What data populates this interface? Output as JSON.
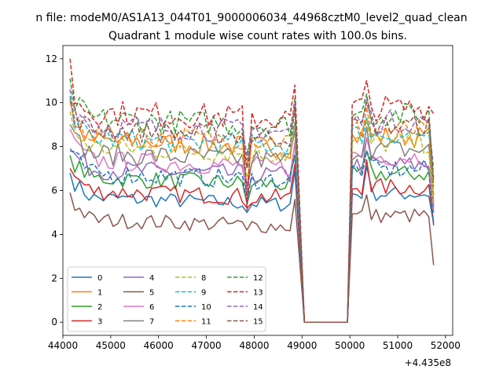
{
  "suptitle": "n file: modeM0/AS1A13_044T01_9000006034_44968cztM0_level2_quad_clean",
  "chart_data": {
    "type": "line",
    "title": "Quadrant 1 module wise count rates with 100.0s bins.",
    "xlabel": "",
    "ylabel": "",
    "x_offset_label": "+4.435e8",
    "xlim": [
      44000,
      52150
    ],
    "ylim": [
      -0.6,
      12.6
    ],
    "xticks": [
      44000,
      45000,
      46000,
      47000,
      48000,
      49000,
      50000,
      51000,
      52000
    ],
    "yticks": [
      0,
      2,
      4,
      6,
      8,
      10,
      12
    ],
    "grid": false,
    "legend": {
      "location": "lower-left",
      "columns": 4
    },
    "x_segments": [
      {
        "start": 44150,
        "end": 48850,
        "step": 100
      },
      {
        "start": 49050,
        "end": 49950,
        "step": 100
      },
      {
        "start": 50050,
        "end": 51750,
        "step": 100
      }
    ],
    "series": [
      {
        "name": "0",
        "color": "#1f77b4",
        "dash": "solid",
        "level": 5.7,
        "jitter": 0.35,
        "first": 6.8,
        "last": 4.5,
        "peak": 6.9,
        "dip": 5.0
      },
      {
        "name": "1",
        "color": "#ff7f0e",
        "dash": "solid",
        "level": 8.3,
        "jitter": 0.5,
        "first": 10.2,
        "last": 5.5,
        "peak": 9.1,
        "dip": 6.0
      },
      {
        "name": "2",
        "color": "#2ca02c",
        "dash": "solid",
        "level": 6.6,
        "jitter": 0.4,
        "first": 7.6,
        "last": 5.0,
        "peak": 7.6,
        "dip": 5.4
      },
      {
        "name": "3",
        "color": "#d62728",
        "dash": "solid",
        "level": 6.0,
        "jitter": 0.4,
        "first": 7.0,
        "last": 4.5,
        "peak": 7.2,
        "dip": 5.2
      },
      {
        "name": "4",
        "color": "#9467bd",
        "dash": "solid",
        "level": 7.0,
        "jitter": 0.45,
        "first": 7.9,
        "last": 5.0,
        "peak": 8.2,
        "dip": 5.8
      },
      {
        "name": "5",
        "color": "#8c564b",
        "dash": "solid",
        "level": 4.7,
        "jitter": 0.35,
        "first": 5.9,
        "last": 2.6,
        "peak": 5.6,
        "dip": 4.2
      },
      {
        "name": "6",
        "color": "#e377c2",
        "dash": "solid",
        "level": 7.4,
        "jitter": 0.45,
        "first": 8.8,
        "last": 5.2,
        "peak": 8.2,
        "dip": 6.0
      },
      {
        "name": "7",
        "color": "#7f7f7f",
        "dash": "solid",
        "level": 7.7,
        "jitter": 0.5,
        "first": 9.0,
        "last": 5.3,
        "peak": 8.7,
        "dip": 6.2
      },
      {
        "name": "8",
        "color": "#bcbd22",
        "dash": "dashed",
        "level": 8.0,
        "jitter": 0.5,
        "first": 9.6,
        "last": 5.4,
        "peak": 9.0,
        "dip": 6.6
      },
      {
        "name": "9",
        "color": "#17becf",
        "dash": "dashed",
        "level": 8.4,
        "jitter": 0.5,
        "first": 10.3,
        "last": 6.0,
        "peak": 9.1,
        "dip": 7.0
      },
      {
        "name": "10",
        "color": "#1f77b4",
        "dash": "dashed",
        "level": 6.8,
        "jitter": 0.45,
        "first": 7.8,
        "last": 4.4,
        "peak": 7.6,
        "dip": 5.4
      },
      {
        "name": "11",
        "color": "#ff7f0e",
        "dash": "dashed",
        "level": 8.6,
        "jitter": 0.5,
        "first": 10.0,
        "last": 5.8,
        "peak": 9.6,
        "dip": 7.2
      },
      {
        "name": "12",
        "color": "#2ca02c",
        "dash": "dashed",
        "level": 9.3,
        "jitter": 0.55,
        "first": 11.1,
        "last": 6.2,
        "peak": 10.2,
        "dip": 7.6
      },
      {
        "name": "13",
        "color": "#d62728",
        "dash": "dashed",
        "level": 9.6,
        "jitter": 0.6,
        "first": 12.0,
        "last": 9.5,
        "peak": 10.8,
        "dip": 5.1
      },
      {
        "name": "14",
        "color": "#9467bd",
        "dash": "dashed",
        "level": 9.0,
        "jitter": 0.55,
        "first": 10.6,
        "last": 7.0,
        "peak": 10.0,
        "dip": 7.4
      },
      {
        "name": "15",
        "color": "#8c564b",
        "dash": "dashed",
        "level": 8.8,
        "jitter": 0.5,
        "first": 10.1,
        "last": 6.5,
        "peak": 9.8,
        "dip": 7.0
      }
    ]
  }
}
